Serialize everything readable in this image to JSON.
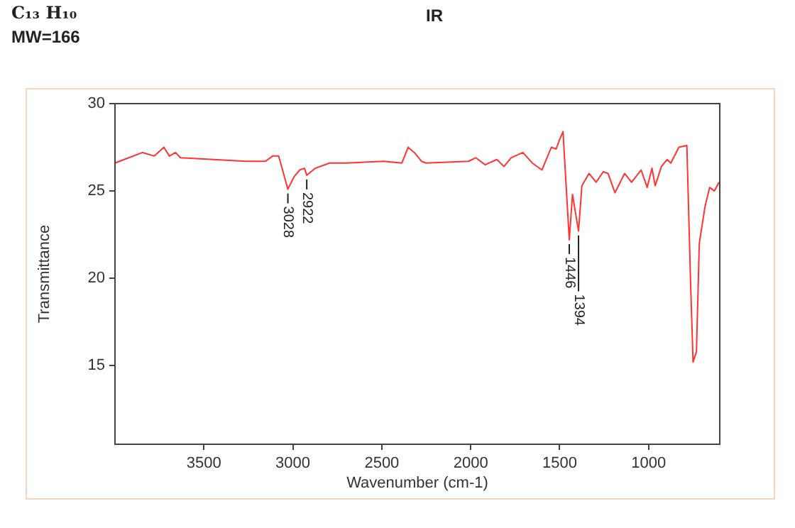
{
  "chart_data": {
    "type": "line",
    "title": "IR",
    "subtitle": "C₁₃ H₁₀",
    "xlabel": "Wavenumber (cm-1)",
    "ylabel": "Transmittance",
    "annotations": [
      "MW=166",
      {
        "text": "3028",
        "x": 3028,
        "y": 25.1
      },
      {
        "text": "2922",
        "x": 2922,
        "y": 25.9
      },
      {
        "text": "1446",
        "x": 1446,
        "y": 22.2
      },
      {
        "text": "1394",
        "x": 1394,
        "y": 22.7
      }
    ],
    "x": [
      4000,
      3845,
      3779,
      3725,
      3694,
      3660,
      3632,
      3263,
      3154,
      3114,
      3080,
      3028,
      2994,
      2962,
      2935,
      2922,
      2874,
      2794,
      2700,
      2490,
      2387,
      2352,
      2317,
      2277,
      2251,
      2012,
      1972,
      1919,
      1853,
      1813,
      1773,
      1707,
      1654,
      1600,
      1547,
      1520,
      1502,
      1481,
      1475,
      1446,
      1428,
      1394,
      1375,
      1335,
      1295,
      1255,
      1228,
      1189,
      1135,
      1096,
      1042,
      1008,
      981,
      963,
      928,
      896,
      875,
      830,
      785,
      763,
      750,
      731,
      715,
      683,
      657,
      630,
      604
    ],
    "series": [
      {
        "color": "#ff3333",
        "values": [
          26.6,
          27.2,
          27.0,
          27.5,
          27.0,
          27.2,
          26.9,
          26.7,
          26.7,
          27.0,
          27.0,
          25.1,
          25.8,
          26.2,
          26.3,
          25.9,
          26.3,
          26.6,
          26.6,
          26.7,
          26.6,
          27.5,
          27.2,
          26.7,
          26.6,
          26.7,
          26.9,
          26.5,
          26.8,
          26.4,
          26.9,
          27.2,
          26.6,
          26.2,
          27.5,
          27.4,
          27.9,
          28.4,
          27.3,
          22.2,
          24.8,
          22.7,
          25.3,
          26.0,
          25.5,
          26.1,
          26.0,
          24.9,
          26.0,
          25.5,
          26.2,
          25.2,
          26.3,
          25.3,
          26.4,
          26.8,
          26.6,
          27.5,
          27.6,
          19.4,
          15.2,
          15.8,
          22.0,
          24.1,
          25.2,
          25.0,
          25.5
        ]
      }
    ],
    "xlim": [
      4000,
      600
    ],
    "ylim": [
      10.5,
      30
    ],
    "xticks": [
      3500,
      3000,
      2500,
      2000,
      1500,
      1000
    ],
    "yticks": [
      15,
      20,
      25,
      30
    ],
    "grid": false,
    "legend": false,
    "marker": "none",
    "line_style": "solid"
  }
}
